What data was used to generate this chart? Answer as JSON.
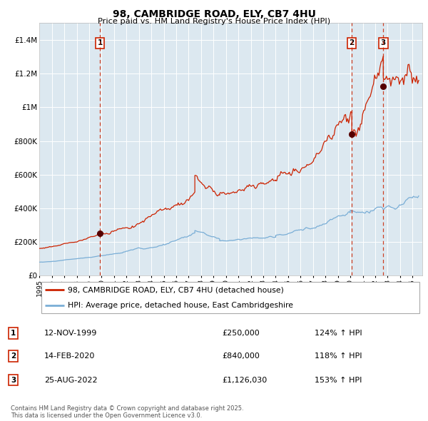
{
  "title": "98, CAMBRIDGE ROAD, ELY, CB7 4HU",
  "subtitle": "Price paid vs. HM Land Registry's House Price Index (HPI)",
  "bg_color": "#dce8f0",
  "red_line_color": "#cc2200",
  "blue_line_color": "#7aaed6",
  "dashed_line_color": "#cc2200",
  "transaction_markers": [
    {
      "x_year": 1999.87,
      "y_value": 250000,
      "label": "1"
    },
    {
      "x_year": 2020.12,
      "y_value": 840000,
      "label": "2"
    },
    {
      "x_year": 2022.65,
      "y_value": 1126030,
      "label": "3"
    }
  ],
  "xmin": 1995.0,
  "xmax": 2025.8,
  "ymin": 0,
  "ymax": 1500000,
  "yticks": [
    0,
    200000,
    400000,
    600000,
    800000,
    1000000,
    1200000,
    1400000
  ],
  "ytick_labels": [
    "£0",
    "£200K",
    "£400K",
    "£600K",
    "£800K",
    "£1M",
    "£1.2M",
    "£1.4M"
  ],
  "legend_entries": [
    {
      "label": "98, CAMBRIDGE ROAD, ELY, CB7 4HU (detached house)",
      "color": "#cc2200"
    },
    {
      "label": "HPI: Average price, detached house, East Cambridgeshire",
      "color": "#7aaed6"
    }
  ],
  "table_rows": [
    {
      "num": "1",
      "date": "12-NOV-1999",
      "price": "£250,000",
      "hpi": "124% ↑ HPI"
    },
    {
      "num": "2",
      "date": "14-FEB-2020",
      "price": "£840,000",
      "hpi": "118% ↑ HPI"
    },
    {
      "num": "3",
      "date": "25-AUG-2022",
      "price": "£1,126,030",
      "hpi": "153% ↑ HPI"
    }
  ],
  "footer": "Contains HM Land Registry data © Crown copyright and database right 2025.\nThis data is licensed under the Open Government Licence v3.0."
}
